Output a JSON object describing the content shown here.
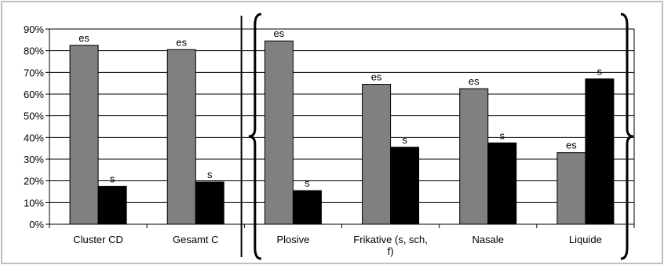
{
  "chart_data": {
    "type": "bar",
    "categories": [
      [
        "Cluster CD"
      ],
      [
        "Gesamt C"
      ],
      [
        "Plosive"
      ],
      [
        "Frikative (s, sch,",
        "f)"
      ],
      [
        "Nasale"
      ],
      [
        "Liquide"
      ]
    ],
    "series": [
      {
        "values": [
          82.5,
          80.5,
          84.5,
          64.5,
          62.5,
          33
        ],
        "labels": [
          "es",
          "es",
          "es",
          "es",
          "es",
          "es"
        ],
        "color": "#808080"
      },
      {
        "values": [
          17.5,
          19.5,
          15.5,
          35.5,
          37.5,
          67
        ],
        "labels": [
          "s",
          "s",
          "s",
          "s",
          "s",
          "s"
        ],
        "color": "#000000"
      }
    ],
    "y_ticks": [
      "0%",
      "10%",
      "20%",
      "30%",
      "40%",
      "50%",
      "60%",
      "70%",
      "80%",
      "90%"
    ],
    "ylim": [
      0,
      90
    ],
    "grid": true,
    "legend": "none",
    "annotations": [
      "vertical divider between Gesamt C and Plosive",
      "curly brace grouping Plosive to Liquide"
    ]
  }
}
